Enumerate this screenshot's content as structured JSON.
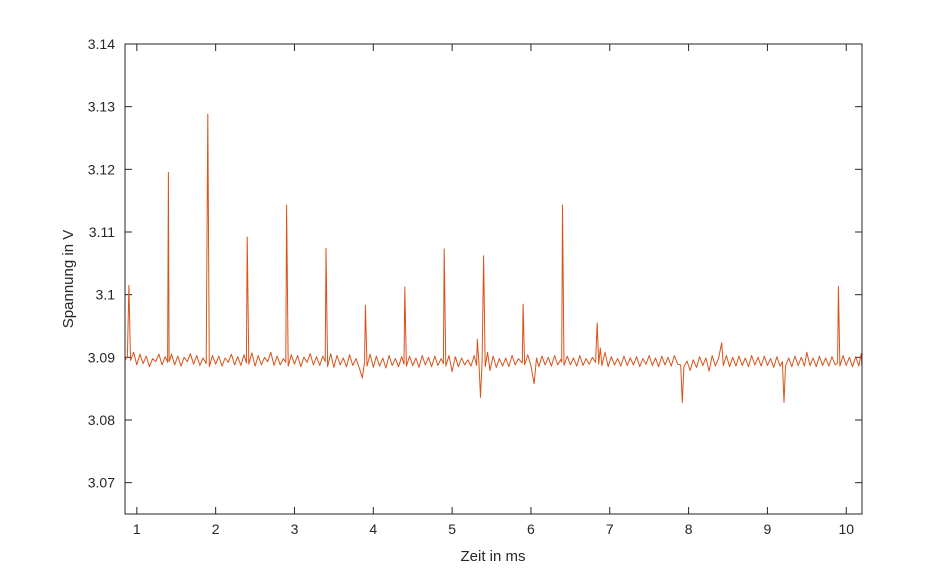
{
  "chart_data": {
    "type": "line",
    "xlabel": "Zeit in ms",
    "ylabel": "Spannung in V",
    "xlim": [
      0.85,
      10.2
    ],
    "ylim": [
      3.065,
      3.14
    ],
    "xticks": [
      1,
      2,
      3,
      4,
      5,
      6,
      7,
      8,
      9,
      10
    ],
    "xtick_labels": [
      "1",
      "2",
      "3",
      "4",
      "5",
      "6",
      "7",
      "8",
      "9",
      "10"
    ],
    "yticks": [
      3.07,
      3.08,
      3.09,
      3.1,
      3.11,
      3.12,
      3.13,
      3.14
    ],
    "ytick_labels": [
      "3.07",
      "3.08",
      "3.09",
      "3.1",
      "3.11",
      "3.12",
      "3.13",
      "3.14"
    ],
    "grid": false,
    "line_color": "#d95319",
    "baseline": 3.0895,
    "series": [
      {
        "values": [
          [
            0.85,
            3.0895
          ],
          [
            0.88,
            3.0902
          ],
          [
            0.9,
            3.1015
          ],
          [
            0.92,
            3.0895
          ],
          [
            0.96,
            3.0908
          ],
          [
            1.0,
            3.0888
          ],
          [
            1.04,
            3.0905
          ],
          [
            1.08,
            3.089
          ],
          [
            1.12,
            3.0902
          ],
          [
            1.16,
            3.0885
          ],
          [
            1.2,
            3.0898
          ],
          [
            1.24,
            3.0893
          ],
          [
            1.28,
            3.0905
          ],
          [
            1.32,
            3.0888
          ],
          [
            1.36,
            3.0901
          ],
          [
            1.39,
            3.0892
          ],
          [
            1.4,
            3.1195
          ],
          [
            1.41,
            3.0893
          ],
          [
            1.44,
            3.0905
          ],
          [
            1.48,
            3.0888
          ],
          [
            1.52,
            3.0902
          ],
          [
            1.56,
            3.0886
          ],
          [
            1.6,
            3.09
          ],
          [
            1.64,
            3.0893
          ],
          [
            1.68,
            3.0906
          ],
          [
            1.72,
            3.0889
          ],
          [
            1.76,
            3.0903
          ],
          [
            1.8,
            3.0887
          ],
          [
            1.84,
            3.0899
          ],
          [
            1.88,
            3.089
          ],
          [
            1.9,
            3.1288
          ],
          [
            1.92,
            3.0885
          ],
          [
            1.96,
            3.0903
          ],
          [
            2.0,
            3.0889
          ],
          [
            2.04,
            3.0902
          ],
          [
            2.08,
            3.0886
          ],
          [
            2.12,
            3.0899
          ],
          [
            2.16,
            3.0892
          ],
          [
            2.2,
            3.0905
          ],
          [
            2.24,
            3.0888
          ],
          [
            2.28,
            3.0901
          ],
          [
            2.32,
            3.0887
          ],
          [
            2.36,
            3.0904
          ],
          [
            2.39,
            3.0891
          ],
          [
            2.4,
            3.1092
          ],
          [
            2.42,
            3.0889
          ],
          [
            2.46,
            3.0907
          ],
          [
            2.5,
            3.0886
          ],
          [
            2.54,
            3.0903
          ],
          [
            2.58,
            3.0888
          ],
          [
            2.62,
            3.09
          ],
          [
            2.66,
            3.0893
          ],
          [
            2.7,
            3.0908
          ],
          [
            2.74,
            3.0887
          ],
          [
            2.78,
            3.0902
          ],
          [
            2.82,
            3.0888
          ],
          [
            2.86,
            3.0898
          ],
          [
            2.89,
            3.0892
          ],
          [
            2.9,
            3.1143
          ],
          [
            2.92,
            3.0886
          ],
          [
            2.96,
            3.0904
          ],
          [
            3.0,
            3.0889
          ],
          [
            3.04,
            3.0903
          ],
          [
            3.08,
            3.0885
          ],
          [
            3.12,
            3.09
          ],
          [
            3.16,
            3.0892
          ],
          [
            3.2,
            3.0906
          ],
          [
            3.24,
            3.0888
          ],
          [
            3.28,
            3.0901
          ],
          [
            3.32,
            3.0887
          ],
          [
            3.36,
            3.0902
          ],
          [
            3.39,
            3.0893
          ],
          [
            3.4,
            3.1074
          ],
          [
            3.42,
            3.0885
          ],
          [
            3.46,
            3.0906
          ],
          [
            3.5,
            3.0884
          ],
          [
            3.54,
            3.0903
          ],
          [
            3.58,
            3.0888
          ],
          [
            3.62,
            3.0899
          ],
          [
            3.66,
            3.0885
          ],
          [
            3.7,
            3.0904
          ],
          [
            3.74,
            3.0887
          ],
          [
            3.78,
            3.0898
          ],
          [
            3.82,
            3.0884
          ],
          [
            3.86,
            3.0867
          ],
          [
            3.89,
            3.0893
          ],
          [
            3.9,
            3.0983
          ],
          [
            3.92,
            3.0886
          ],
          [
            3.96,
            3.0905
          ],
          [
            4.0,
            3.0884
          ],
          [
            4.04,
            3.0902
          ],
          [
            4.08,
            3.0886
          ],
          [
            4.12,
            3.0899
          ],
          [
            4.16,
            3.0883
          ],
          [
            4.2,
            3.0903
          ],
          [
            4.24,
            3.0887
          ],
          [
            4.28,
            3.0898
          ],
          [
            4.32,
            3.0885
          ],
          [
            4.36,
            3.0901
          ],
          [
            4.39,
            3.0889
          ],
          [
            4.4,
            3.1012
          ],
          [
            4.42,
            3.0886
          ],
          [
            4.46,
            3.0902
          ],
          [
            4.5,
            3.0887
          ],
          [
            4.54,
            3.0899
          ],
          [
            4.58,
            3.0884
          ],
          [
            4.62,
            3.0903
          ],
          [
            4.66,
            3.0888
          ],
          [
            4.7,
            3.09
          ],
          [
            4.74,
            3.0885
          ],
          [
            4.78,
            3.0902
          ],
          [
            4.82,
            3.0887
          ],
          [
            4.86,
            3.0898
          ],
          [
            4.89,
            3.089
          ],
          [
            4.9,
            3.1073
          ],
          [
            4.92,
            3.0886
          ],
          [
            4.96,
            3.0903
          ],
          [
            5.0,
            3.0877
          ],
          [
            5.04,
            3.0901
          ],
          [
            5.08,
            3.0885
          ],
          [
            5.12,
            3.0899
          ],
          [
            5.16,
            3.0888
          ],
          [
            5.2,
            3.0896
          ],
          [
            5.24,
            3.0886
          ],
          [
            5.28,
            3.0903
          ],
          [
            5.31,
            3.0887
          ],
          [
            5.32,
            3.0929
          ],
          [
            5.34,
            3.0892
          ],
          [
            5.36,
            3.0836
          ],
          [
            5.38,
            3.0894
          ],
          [
            5.4,
            3.1062
          ],
          [
            5.42,
            3.0885
          ],
          [
            5.45,
            3.0908
          ],
          [
            5.48,
            3.0879
          ],
          [
            5.52,
            3.0902
          ],
          [
            5.56,
            3.0884
          ],
          [
            5.6,
            3.0898
          ],
          [
            5.64,
            3.0886
          ],
          [
            5.68,
            3.0899
          ],
          [
            5.72,
            3.0885
          ],
          [
            5.76,
            3.0903
          ],
          [
            5.8,
            3.0888
          ],
          [
            5.84,
            3.0898
          ],
          [
            5.89,
            3.0891
          ],
          [
            5.9,
            3.0985
          ],
          [
            5.92,
            3.0888
          ],
          [
            5.96,
            3.0904
          ],
          [
            6.0,
            3.0887
          ],
          [
            6.04,
            3.0858
          ],
          [
            6.07,
            3.0899
          ],
          [
            6.1,
            3.0885
          ],
          [
            6.14,
            3.0902
          ],
          [
            6.18,
            3.0888
          ],
          [
            6.22,
            3.09
          ],
          [
            6.26,
            3.0886
          ],
          [
            6.3,
            3.0903
          ],
          [
            6.34,
            3.0888
          ],
          [
            6.38,
            3.0897
          ],
          [
            6.39,
            3.0892
          ],
          [
            6.4,
            3.1143
          ],
          [
            6.42,
            3.0887
          ],
          [
            6.46,
            3.0902
          ],
          [
            6.5,
            3.0888
          ],
          [
            6.54,
            3.0899
          ],
          [
            6.58,
            3.0886
          ],
          [
            6.62,
            3.0903
          ],
          [
            6.66,
            3.0887
          ],
          [
            6.7,
            3.0898
          ],
          [
            6.74,
            3.0889
          ],
          [
            6.78,
            3.09
          ],
          [
            6.82,
            3.0892
          ],
          [
            6.84,
            3.0955
          ],
          [
            6.86,
            3.0889
          ],
          [
            6.88,
            3.0915
          ],
          [
            6.9,
            3.0887
          ],
          [
            6.94,
            3.0908
          ],
          [
            6.98,
            3.0885
          ],
          [
            7.02,
            3.0901
          ],
          [
            7.06,
            3.0888
          ],
          [
            7.1,
            3.0898
          ],
          [
            7.14,
            3.0886
          ],
          [
            7.18,
            3.0902
          ],
          [
            7.22,
            3.0887
          ],
          [
            7.26,
            3.0899
          ],
          [
            7.3,
            3.0888
          ],
          [
            7.34,
            3.0901
          ],
          [
            7.38,
            3.0885
          ],
          [
            7.42,
            3.0898
          ],
          [
            7.46,
            3.0889
          ],
          [
            7.5,
            3.0903
          ],
          [
            7.54,
            3.0887
          ],
          [
            7.58,
            3.0899
          ],
          [
            7.62,
            3.0885
          ],
          [
            7.66,
            3.0902
          ],
          [
            7.7,
            3.0888
          ],
          [
            7.74,
            3.09
          ],
          [
            7.78,
            3.0886
          ],
          [
            7.82,
            3.0903
          ],
          [
            7.86,
            3.0889
          ],
          [
            7.9,
            3.0888
          ],
          [
            7.92,
            3.0828
          ],
          [
            7.94,
            3.0885
          ],
          [
            7.98,
            3.0894
          ],
          [
            8.02,
            3.0879
          ],
          [
            8.06,
            3.0896
          ],
          [
            8.1,
            3.0884
          ],
          [
            8.14,
            3.0901
          ],
          [
            8.18,
            3.0887
          ],
          [
            8.22,
            3.0899
          ],
          [
            8.26,
            3.0878
          ],
          [
            8.3,
            3.0903
          ],
          [
            8.34,
            3.0886
          ],
          [
            8.38,
            3.0898
          ],
          [
            8.42,
            3.0923
          ],
          [
            8.44,
            3.0887
          ],
          [
            8.48,
            3.0903
          ],
          [
            8.52,
            3.0885
          ],
          [
            8.56,
            3.09
          ],
          [
            8.6,
            3.0886
          ],
          [
            8.64,
            3.0902
          ],
          [
            8.68,
            3.0887
          ],
          [
            8.72,
            3.0899
          ],
          [
            8.76,
            3.0885
          ],
          [
            8.8,
            3.0903
          ],
          [
            8.84,
            3.0888
          ],
          [
            8.88,
            3.09
          ],
          [
            8.92,
            3.0886
          ],
          [
            8.96,
            3.0902
          ],
          [
            9.0,
            3.0887
          ],
          [
            9.04,
            3.0898
          ],
          [
            9.08,
            3.0884
          ],
          [
            9.12,
            3.0901
          ],
          [
            9.16,
            3.0886
          ],
          [
            9.19,
            3.0893
          ],
          [
            9.21,
            3.0828
          ],
          [
            9.23,
            3.0886
          ],
          [
            9.27,
            3.0899
          ],
          [
            9.31,
            3.0885
          ],
          [
            9.35,
            3.0902
          ],
          [
            9.39,
            3.0887
          ],
          [
            9.43,
            3.09
          ],
          [
            9.47,
            3.0886
          ],
          [
            9.5,
            3.0908
          ],
          [
            9.54,
            3.0887
          ],
          [
            9.58,
            3.0899
          ],
          [
            9.62,
            3.0885
          ],
          [
            9.66,
            3.0902
          ],
          [
            9.7,
            3.0887
          ],
          [
            9.74,
            3.0899
          ],
          [
            9.78,
            3.0886
          ],
          [
            9.82,
            3.0901
          ],
          [
            9.86,
            3.0888
          ],
          [
            9.89,
            3.0891
          ],
          [
            9.9,
            3.1013
          ],
          [
            9.92,
            3.0886
          ],
          [
            9.96,
            3.0903
          ],
          [
            10.0,
            3.0887
          ],
          [
            10.04,
            3.09
          ],
          [
            10.08,
            3.0885
          ],
          [
            10.12,
            3.0901
          ],
          [
            10.16,
            3.0886
          ],
          [
            10.19,
            3.0906
          ],
          [
            10.2,
            3.0884
          ]
        ]
      }
    ]
  }
}
